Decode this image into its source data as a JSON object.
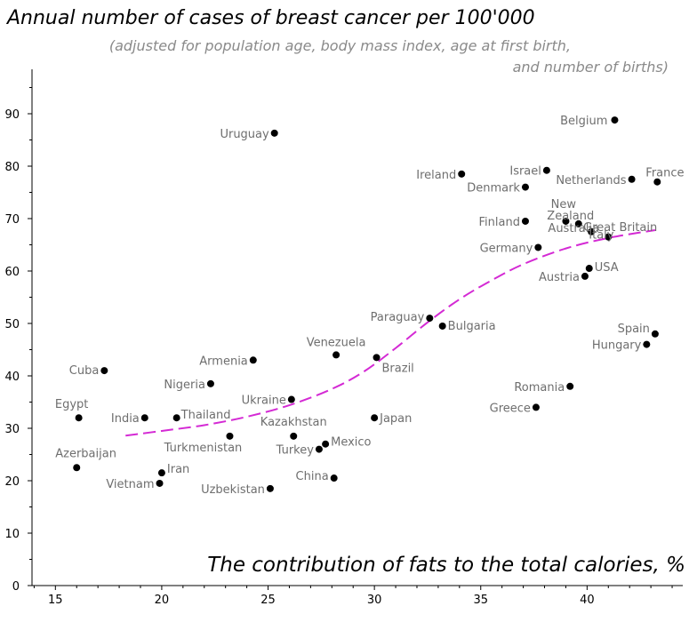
{
  "chart_data": {
    "type": "scatter",
    "title": "Annual number of cases of breast cancer per 100'000",
    "subtitle_line1": "(adjusted for population age, body mass index, age at first birth,",
    "subtitle_line2": "and number of births)",
    "xlabel": "The contribution of fats to the total calories, %",
    "xlim": [
      13.9,
      44.5
    ],
    "ylim": [
      0,
      100
    ],
    "xticks": [
      15,
      20,
      25,
      30,
      35,
      40
    ],
    "yticks": [
      0,
      10,
      20,
      30,
      40,
      50,
      60,
      70,
      80,
      90
    ],
    "points": [
      {
        "label": "Uruguay",
        "x": 25.3,
        "y": 86.3
      },
      {
        "label": "Belgium",
        "x": 41.3,
        "y": 88.8
      },
      {
        "label": "Israel",
        "x": 38.1,
        "y": 79.2
      },
      {
        "label": "Ireland",
        "x": 34.1,
        "y": 78.5
      },
      {
        "label": "Denmark",
        "x": 37.1,
        "y": 76.0
      },
      {
        "label": "Netherlands",
        "x": 42.1,
        "y": 77.5
      },
      {
        "label": "France",
        "x": 43.3,
        "y": 77.0
      },
      {
        "label": "New Zealand",
        "x": 39.6,
        "y": 69.0
      },
      {
        "label": "Finland",
        "x": 37.1,
        "y": 69.5
      },
      {
        "label": "Great Britain",
        "x": 40.2,
        "y": 67.5
      },
      {
        "label": "Italy",
        "x": 41.0,
        "y": 66.5
      },
      {
        "label": "Australia",
        "x": 39.0,
        "y": 69.5
      },
      {
        "label": "Germany",
        "x": 37.7,
        "y": 64.5
      },
      {
        "label": "USA",
        "x": 40.1,
        "y": 60.5
      },
      {
        "label": "Austria",
        "x": 39.9,
        "y": 59.0
      },
      {
        "label": "Paraguay",
        "x": 32.6,
        "y": 51.0
      },
      {
        "label": "Bulgaria",
        "x": 33.2,
        "y": 49.5
      },
      {
        "label": "Spain",
        "x": 43.2,
        "y": 48.0
      },
      {
        "label": "Hungary",
        "x": 42.8,
        "y": 46.0
      },
      {
        "label": "Venezuela",
        "x": 28.2,
        "y": 44.0
      },
      {
        "label": "Brazil",
        "x": 30.1,
        "y": 43.5
      },
      {
        "label": "Armenia",
        "x": 24.3,
        "y": 43.0
      },
      {
        "label": "Cuba",
        "x": 17.3,
        "y": 41.0
      },
      {
        "label": "Nigeria",
        "x": 22.3,
        "y": 38.5
      },
      {
        "label": "Romania",
        "x": 39.2,
        "y": 38.0
      },
      {
        "label": "Ukraine",
        "x": 26.1,
        "y": 35.5
      },
      {
        "label": "Greece",
        "x": 37.6,
        "y": 34.0
      },
      {
        "label": "Egypt",
        "x": 16.1,
        "y": 32.0
      },
      {
        "label": "India",
        "x": 19.2,
        "y": 32.0
      },
      {
        "label": "Thailand",
        "x": 20.7,
        "y": 32.0
      },
      {
        "label": "Japan",
        "x": 30.0,
        "y": 32.0
      },
      {
        "label": "Turkmenistan",
        "x": 23.2,
        "y": 28.5
      },
      {
        "label": "Kazakhstan",
        "x": 26.2,
        "y": 28.5
      },
      {
        "label": "Mexico",
        "x": 27.7,
        "y": 27.0
      },
      {
        "label": "Turkey",
        "x": 27.4,
        "y": 26.0
      },
      {
        "label": "Azerbaijan",
        "x": 16.0,
        "y": 22.5
      },
      {
        "label": "Iran",
        "x": 20.0,
        "y": 21.5
      },
      {
        "label": "Vietnam",
        "x": 19.9,
        "y": 19.5
      },
      {
        "label": "China",
        "x": 28.1,
        "y": 20.5
      },
      {
        "label": "Uzbekistan",
        "x": 25.1,
        "y": 18.5
      }
    ],
    "trend": {
      "style": "dashed",
      "color": "#d42ad4",
      "x": [
        18.3,
        20,
        22,
        24,
        26,
        28,
        29.5,
        31,
        32.5,
        34,
        35.5,
        37,
        39,
        41,
        43.2
      ],
      "y": [
        28.6,
        29.5,
        30.6,
        32.2,
        34.4,
        37.5,
        40.8,
        45.3,
        50.2,
        54.6,
        58.2,
        61.3,
        64.3,
        66.3,
        67.8
      ]
    }
  }
}
